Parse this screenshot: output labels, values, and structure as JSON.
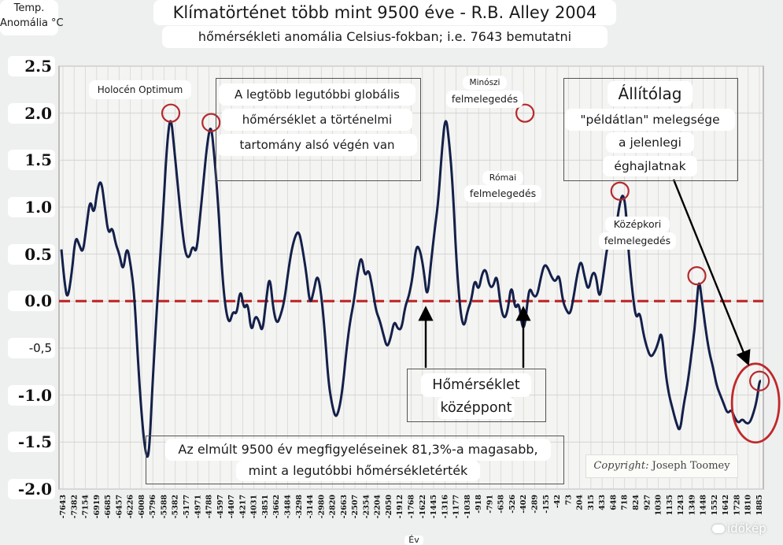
{
  "chart_data": {
    "type": "line",
    "title": "Klímatörténet több mint 9500 éve - R.B. Alley 2004",
    "subtitle": "hőmérsékleti anomália Celsius-fokban; i.e. 7643 bemutatni",
    "ylabel_line1": "Temp.",
    "ylabel_line2": "Anomália °C",
    "xlabel": "Év",
    "ylim": [
      -2.0,
      2.5
    ],
    "yticks": [
      {
        "value": 2.5,
        "label": "2.5"
      },
      {
        "value": 2.0,
        "label": "2.0"
      },
      {
        "value": 1.5,
        "label": "1.5"
      },
      {
        "value": 1.0,
        "label": "1.0"
      },
      {
        "value": 0.5,
        "label": "0.5"
      },
      {
        "value": 0.0,
        "label": "0.0"
      },
      {
        "value": -0.5,
        "label": "-0,5"
      },
      {
        "value": -1.0,
        "label": "-1.0"
      },
      {
        "value": -1.5,
        "label": "-1.5"
      },
      {
        "value": -2.0,
        "label": "-2.0"
      }
    ],
    "xticks": [
      "-7643",
      "-7382",
      "-7154",
      "-6919",
      "-6685",
      "-6457",
      "-6226",
      "-6008",
      "-5796",
      "-5588",
      "-5382",
      "-5177",
      "-4971",
      "-4788",
      "-4597",
      "-4407",
      "-4217",
      "-4031",
      "-3851",
      "-3662",
      "-3484",
      "-3298",
      "-3144",
      "-2980",
      "-2820",
      "-2663",
      "-2507",
      "-2354",
      "-2204",
      "-2050",
      "-1912",
      "-1768",
      "-1622",
      "-1445",
      "-1316",
      "-1177",
      "-1038",
      "-918",
      "-791",
      "-658",
      "-526",
      "-402",
      "-289",
      "-155",
      "-42",
      "73",
      "204",
      "315",
      "433",
      "648",
      "718",
      "824",
      "927",
      "1030",
      "1135",
      "1243",
      "1349",
      "1448",
      "1552",
      "1642",
      "1728",
      "1810",
      "1885"
    ],
    "grid": true,
    "reference_line": {
      "value": 0.0,
      "style": "dashed",
      "color": "#c0282a"
    },
    "series": [
      {
        "color": "#14204a",
        "x": [
          -7643,
          -7600,
          -7560,
          -7500,
          -7450,
          -7400,
          -7350,
          -7300,
          -7250,
          -7200,
          -7150,
          -7100,
          -7050,
          -7000,
          -6950,
          -6900,
          -6850,
          -6800,
          -6750,
          -6700,
          -6650,
          -6600,
          -6550,
          -6500,
          -6450,
          -6400,
          -6350,
          -6300,
          -6250,
          -6200,
          -6150,
          -6100,
          -6050,
          -6000,
          -5950,
          -5900,
          -5850,
          -5800,
          -5750,
          -5700,
          -5650,
          -5600,
          -5550,
          -5500,
          -5450,
          -5400,
          -5350,
          -5300,
          -5250,
          -5200,
          -5150,
          -5100,
          -5050,
          -5000,
          -4950,
          -4900,
          -4850,
          -4800,
          -4750,
          -4700,
          -4650,
          -4600,
          -4550,
          -4500,
          -4450,
          -4400,
          -4350,
          -4300,
          -4250,
          -4200,
          -4150,
          -4100,
          -4050,
          -4000,
          -3950,
          -3900,
          -3850,
          -3800,
          -3750,
          -3700,
          -3650,
          -3600,
          -3550,
          -3500,
          -3450,
          -3400,
          -3350,
          -3300,
          -3250,
          -3200,
          -3150,
          -3100,
          -3050,
          -3000,
          -2950,
          -2900,
          -2850,
          -2800,
          -2750,
          -2700,
          -2650,
          -2600,
          -2550,
          -2500,
          -2450,
          -2400,
          -2350,
          -2300,
          -2250,
          -2200,
          -2150,
          -2100,
          -2050,
          -2000,
          -1950,
          -1900,
          -1850,
          -1800,
          -1750,
          -1700,
          -1650,
          -1600,
          -1550,
          -1500,
          -1450,
          -1400,
          -1350,
          -1316,
          -1280,
          -1250,
          -1200,
          -1150,
          -1100,
          -1050,
          -1000,
          -950,
          -900,
          -850,
          -800,
          -750,
          -700,
          -650,
          -600,
          -550,
          -500,
          -450,
          -400,
          -350,
          -300,
          -250,
          -200,
          -150,
          -100,
          -60,
          -20,
          20,
          60,
          100,
          150,
          200,
          250,
          300,
          350,
          400,
          450,
          500,
          550,
          600,
          650,
          700,
          750,
          800,
          850,
          900,
          950,
          1000,
          1030,
          1060,
          1100,
          1150,
          1200,
          1250,
          1300,
          1350,
          1400,
          1450,
          1500,
          1550,
          1600,
          1650,
          1700,
          1750,
          1800,
          1850,
          1885,
          1905
        ],
        "y": [
          0.55,
          0.2,
          0.0,
          0.3,
          0.7,
          0.6,
          0.5,
          0.8,
          1.1,
          0.9,
          1.2,
          1.3,
          1.0,
          0.7,
          0.8,
          0.6,
          0.5,
          0.3,
          0.6,
          0.4,
          0.1,
          -0.6,
          -1.2,
          -1.6,
          -1.7,
          -0.9,
          -0.2,
          0.4,
          1.0,
          1.7,
          2.0,
          1.6,
          1.2,
          0.8,
          0.5,
          0.45,
          0.6,
          0.5,
          0.9,
          1.3,
          1.7,
          1.9,
          1.5,
          1.0,
          0.3,
          -0.1,
          -0.25,
          -0.1,
          -0.15,
          0.15,
          -0.1,
          0.0,
          -0.35,
          -0.15,
          -0.2,
          -0.35,
          0.0,
          0.3,
          -0.1,
          -0.25,
          -0.15,
          0.0,
          0.3,
          0.55,
          0.7,
          0.75,
          0.55,
          0.3,
          -0.05,
          0.1,
          0.3,
          0.1,
          -0.3,
          -0.85,
          -1.1,
          -1.25,
          -1.15,
          -0.9,
          -0.5,
          -0.2,
          0.0,
          0.3,
          0.5,
          0.25,
          0.35,
          0.15,
          -0.1,
          -0.2,
          -0.35,
          -0.5,
          -0.4,
          -0.2,
          -0.3,
          -0.3,
          -0.05,
          0.05,
          0.25,
          0.6,
          0.55,
          0.35,
          0.0,
          0.4,
          0.75,
          1.05,
          1.6,
          2.0,
          1.7,
          1.2,
          0.4,
          -0.1,
          -0.3,
          -0.1,
          0.0,
          0.25,
          0.1,
          0.3,
          0.35,
          0.15,
          0.15,
          0.3,
          -0.05,
          -0.2,
          -0.1,
          0.2,
          -0.1,
          0.0,
          -0.3,
          -0.25,
          0.0,
          0.15,
          0.05,
          0.05,
          0.25,
          0.4,
          0.35,
          0.25,
          0.2,
          0.3,
          0.0,
          -0.1,
          -0.15,
          0.05,
          0.3,
          0.45,
          0.25,
          0.1,
          0.3,
          0.3,
          0.0,
          0.25,
          0.55,
          0.7,
          0.55,
          0.85,
          1.05,
          1.15,
          1.0,
          0.5,
          0.1,
          -0.2,
          -0.1,
          -0.35,
          -0.5,
          -0.6,
          -0.55,
          -0.45,
          -0.3,
          -0.75,
          -1.0,
          -1.15,
          -1.3,
          -1.4,
          -1.1,
          -0.9,
          -0.6,
          -0.3,
          0.0,
          0.25,
          0.0,
          -0.3,
          -0.55,
          -0.7,
          -0.9,
          -1.0,
          -1.1,
          -1.2,
          -1.15,
          -1.25,
          -1.3,
          -1.25,
          -1.3,
          -1.3,
          -1.2,
          -1.05,
          -0.85,
          -0.85
        ]
      }
    ],
    "annotations": {
      "holocene": "Holocén Optimum",
      "minoan_1": "Minószi",
      "minoan_2": "felmelegedés",
      "roman_1": "Római",
      "roman_2": "felmelegedés",
      "medieval_1": "Középkori",
      "medieval_2": "felmelegedés",
      "claim_1": "A legtöbb legutóbbi globális",
      "claim_2": "hőmérséklet a történelmi",
      "claim_3": "tartomány alsó végén van",
      "unprec_1": "Állítólag",
      "unprec_2": "\"példátlan\" melegsége",
      "unprec_3": "a jelenlegi",
      "unprec_4": "éghajlatnak",
      "center_1": "Hőmérséklet",
      "center_2": "középpont",
      "stat_1": "Az elmúlt 9500 év megfigyeléseinek 81,3%-a magasabb,",
      "stat_2": "mint a legutóbbi hőmérsékletérték",
      "copyright_italic": "Copyright:",
      "copyright_name": " Joseph Toomey",
      "watermark": "időkép"
    }
  }
}
